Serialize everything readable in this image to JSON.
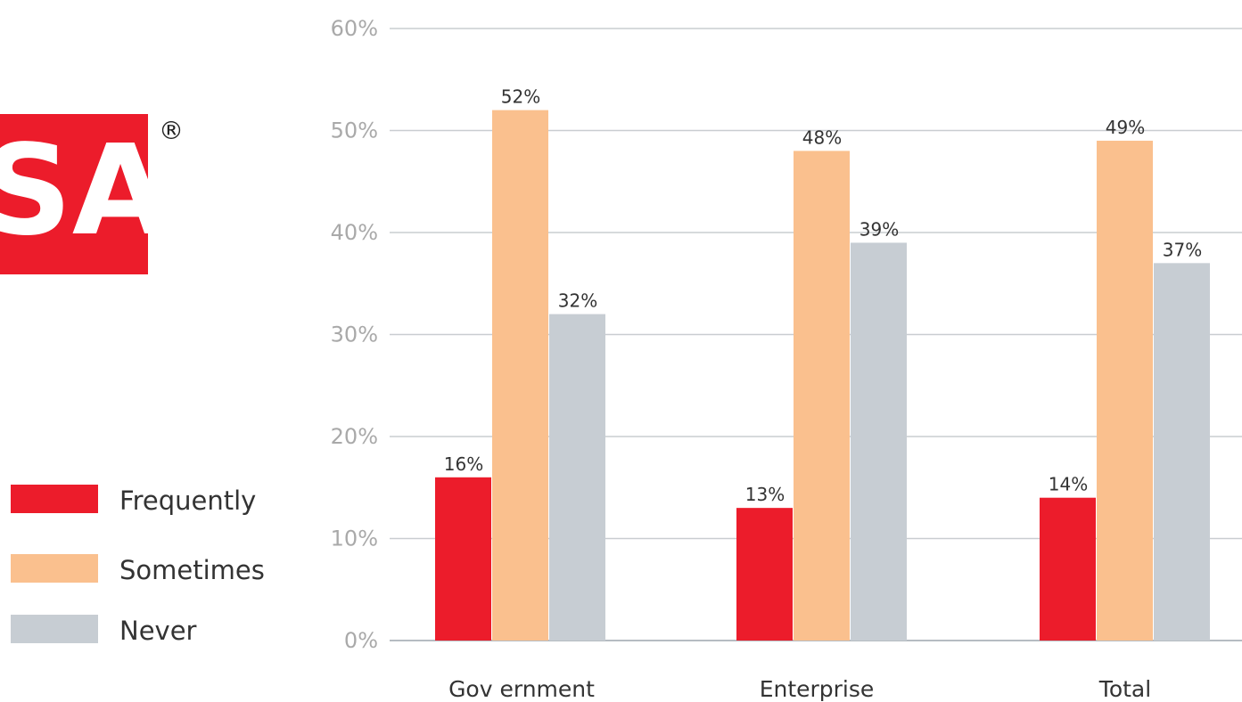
{
  "colors": {
    "frequently": "#ec1c2b",
    "sometimes": "#fac08e",
    "never": "#c7cdd3",
    "logo": "#ec1c2b",
    "grid": "#c9cdd1",
    "axis": "#b6bcc2"
  },
  "logo": {
    "icon": "rsa-logo-fragment",
    "text": "SA",
    "registered_mark": "®"
  },
  "chart_data": {
    "type": "bar",
    "title": "",
    "xlabel": "",
    "ylabel": "",
    "ylim": [
      0,
      60
    ],
    "yticks": [
      {
        "value": 0,
        "label": "0%"
      },
      {
        "value": 10,
        "label": "10%"
      },
      {
        "value": 20,
        "label": "20%"
      },
      {
        "value": 30,
        "label": "30%"
      },
      {
        "value": 40,
        "label": "40%"
      },
      {
        "value": 50,
        "label": "50%"
      },
      {
        "value": 60,
        "label": "60%"
      }
    ],
    "grid": true,
    "legend_position": "left",
    "categories": [
      "Gov ernment",
      "Enterprise",
      "Total"
    ],
    "series": [
      {
        "name": "Frequently",
        "color_key": "frequently",
        "values": [
          16,
          13,
          14
        ],
        "labels": [
          "16%",
          "13%",
          "14%"
        ]
      },
      {
        "name": "Sometimes",
        "color_key": "sometimes",
        "values": [
          52,
          48,
          49
        ],
        "labels": [
          "52%",
          "48%",
          "49%"
        ]
      },
      {
        "name": "Never",
        "color_key": "never",
        "values": [
          32,
          39,
          37
        ],
        "labels": [
          "32%",
          "39%",
          "37%"
        ]
      }
    ]
  }
}
